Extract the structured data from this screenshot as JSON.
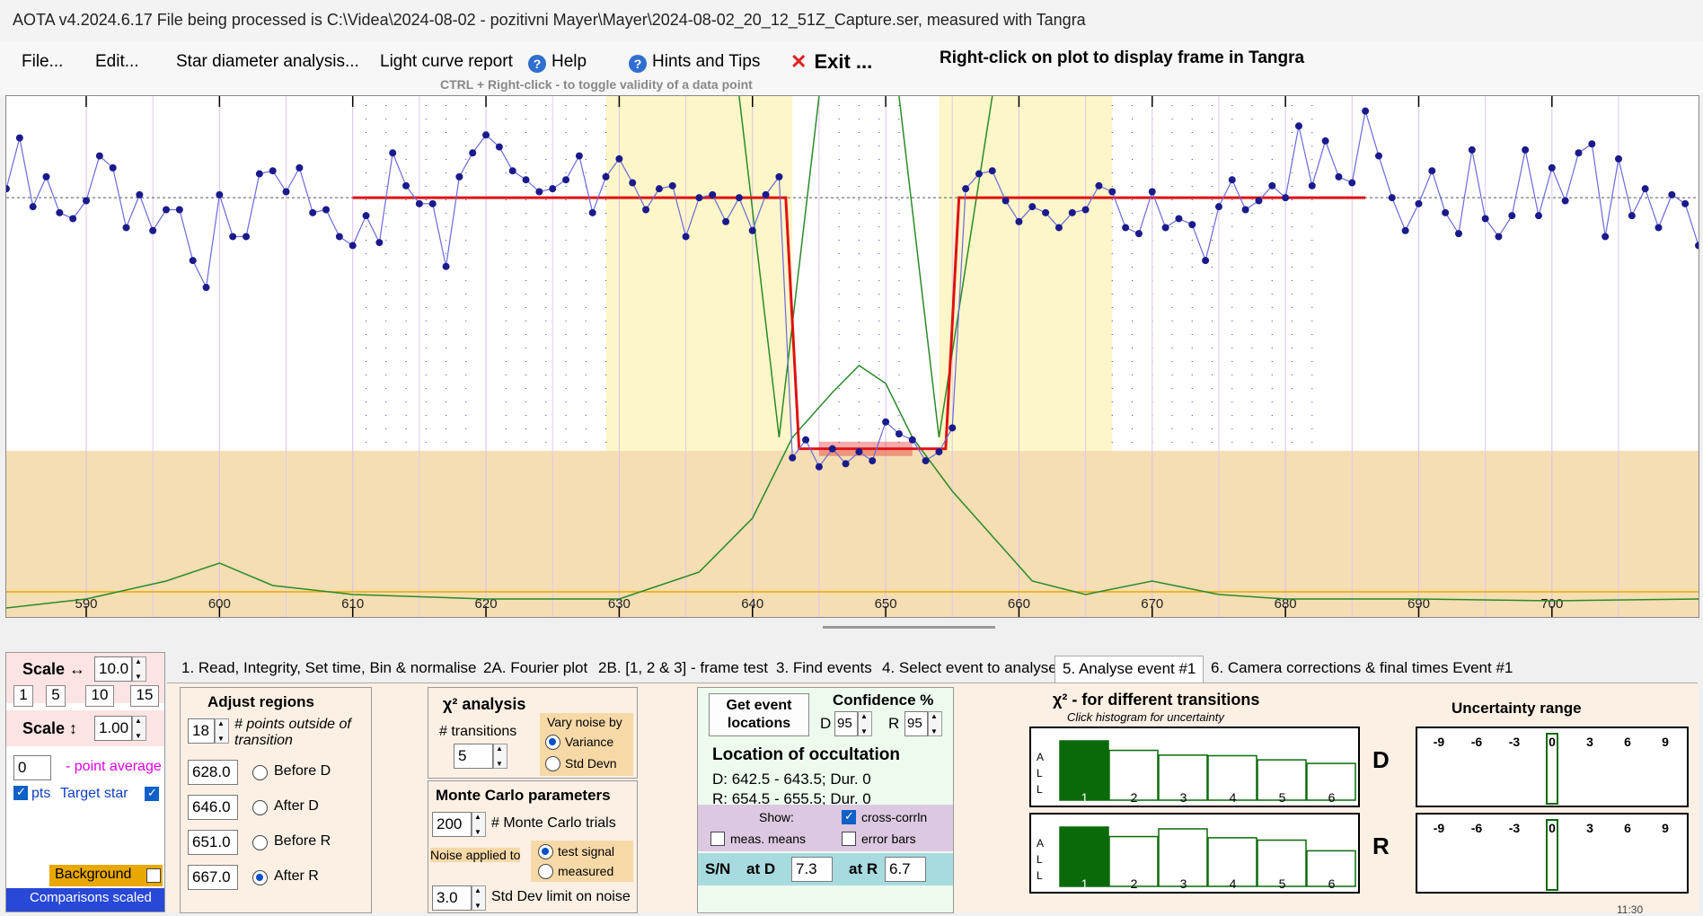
{
  "window": {
    "title": "AOTA v4.2024.6.17    File being processed is C:\\Videa\\2024-08-02 - pozitivni Mayer\\Mayer\\2024-08-02_20_12_51Z_Capture.ser, measured with Tangra"
  },
  "menu": {
    "file": "File...",
    "edit": "Edit...",
    "star_diameter": "Star diameter analysis...",
    "light_curve": "Light curve report",
    "help": "Help",
    "hints": "Hints and Tips",
    "exit": "Exit ...",
    "rightclick_hint": "Right-click on plot to display frame in Tangra",
    "ctrl_hint": "CTRL + Right-click  -  to toggle validity of a data point"
  },
  "colors": {
    "series": "#1a1a8c",
    "model": "#e01010",
    "chi2": "#2a8a2a",
    "yellow_band": "#fdf6c8",
    "tan_band": "#f5deb3",
    "comparison": "#e8a800",
    "tab_bg": "#fcf0e4"
  },
  "chart_data": {
    "type": "line",
    "x_ticks": [
      590,
      600,
      610,
      620,
      630,
      640,
      650,
      660,
      670,
      680,
      690,
      700
    ],
    "xlim": [
      584,
      711
    ],
    "ylim": [
      -2.0,
      12.0
    ],
    "baseline": 8.6,
    "event_level": 0.2,
    "series": [
      {
        "x": [
          584,
          585,
          586,
          587,
          588,
          589,
          590,
          591,
          592,
          593,
          594,
          595,
          596,
          597,
          598,
          599,
          600,
          601,
          602,
          603,
          604,
          605,
          606,
          607,
          608,
          609,
          610,
          611,
          612,
          613,
          614,
          615,
          616,
          617,
          618,
          619,
          620,
          621,
          622,
          623,
          624,
          625,
          626,
          627,
          628,
          629,
          630,
          631,
          632,
          633,
          634,
          635,
          636,
          637,
          638,
          639,
          640,
          641,
          642,
          643,
          644,
          645,
          646,
          647,
          648,
          649,
          650,
          651,
          652,
          653,
          654,
          655,
          656,
          657,
          658,
          659,
          660,
          661,
          662,
          663,
          664,
          665,
          666,
          667,
          668,
          669,
          670,
          671,
          672,
          673,
          674,
          675,
          676,
          677,
          678,
          679,
          680,
          681,
          682,
          683,
          684,
          685,
          686,
          687,
          688,
          689,
          690,
          691,
          692,
          693,
          694,
          695,
          696,
          697,
          698,
          699,
          700,
          701,
          702,
          703,
          704,
          705,
          706,
          707,
          708,
          709,
          710,
          711
        ],
        "y": [
          8.9,
          10.6,
          8.3,
          9.3,
          8.1,
          7.9,
          8.5,
          10.0,
          9.6,
          7.6,
          8.7,
          7.5,
          8.2,
          8.2,
          6.5,
          5.6,
          8.7,
          7.3,
          7.3,
          9.4,
          9.5,
          8.8,
          9.6,
          8.1,
          8.2,
          7.3,
          7.0,
          8.0,
          7.1,
          10.1,
          9.0,
          8.4,
          8.4,
          6.3,
          9.3,
          10.1,
          10.7,
          10.3,
          9.5,
          9.2,
          8.8,
          8.9,
          9.2,
          10.0,
          8.1,
          9.3,
          9.9,
          9.1,
          8.2,
          8.9,
          9.0,
          7.3,
          8.6,
          8.7,
          7.8,
          8.6,
          7.5,
          8.7,
          9.3,
          -0.1,
          0.5,
          -0.4,
          0.2,
          -0.3,
          0.1,
          -0.2,
          1.1,
          0.7,
          0.5,
          -0.2,
          0.1,
          0.9,
          8.9,
          9.4,
          9.5,
          8.5,
          7.8,
          8.3,
          8.1,
          7.6,
          8.1,
          8.2,
          9.0,
          8.8,
          7.6,
          7.4,
          8.8,
          7.6,
          7.9,
          7.7,
          6.5,
          8.3,
          9.2,
          8.2,
          8.5,
          9.0,
          8.6,
          11.0,
          9.0,
          10.5,
          9.3,
          9.1,
          11.5,
          10.0,
          8.6,
          7.5,
          8.4,
          9.5,
          8.1,
          7.4,
          10.2,
          7.9,
          7.3,
          8.0,
          10.2,
          8.0,
          9.6,
          8.5,
          10.1,
          10.4,
          7.3,
          9.9,
          8.0,
          8.9,
          7.6,
          8.7,
          8.4,
          7.0
        ]
      }
    ]
  },
  "bottom": {
    "scale_h_label": "Scale ↔",
    "scale_h_value": "10.0",
    "scale_btns": [
      "1",
      "5",
      "10",
      "15"
    ],
    "scale_v_label": "Scale ↕",
    "scale_v_value": "1.00",
    "point_avg_value": "0",
    "point_avg_label": "- point average",
    "pts_label": "pts",
    "target_star": "Target star",
    "background": "Background",
    "comparisons": "Comparisons scaled",
    "tabs": [
      "1.  Read, Integrity, Set time, Bin & normalise",
      "2A. Fourier plot",
      "2B. [1, 2 & 3] - frame test",
      "3. Find events",
      "4. Select event to analyse",
      "5. Analyse event #1",
      "6. Camera corrections & final times Event #1"
    ],
    "adjust_regions": "Adjust regions",
    "points_outside_value": "18",
    "points_outside_label": "# points outside of transition",
    "region_values": [
      "628.0",
      "646.0",
      "651.0",
      "667.0"
    ],
    "region_labels": [
      "Before D",
      "After D",
      "Before R",
      "After R"
    ],
    "chi2_title": "χ² analysis",
    "transitions_label": "# transitions",
    "transitions_value": "5",
    "vary_noise": "Vary noise by",
    "variance": "Variance",
    "std_devn": "Std Devn",
    "mc_title": "Monte Carlo parameters",
    "mc_trials_value": "200",
    "mc_trials_label": "# Monte Carlo trials",
    "noise_applied": "Noise applied to",
    "test_signal": "test signal",
    "measured": "measured",
    "std_limit_value": "3.0",
    "std_limit_label": "Std Dev limit on noise",
    "get_event_btn": "Get event locations",
    "confidence_label": "Confidence %",
    "conf_d_label": "D",
    "conf_d_value": "95",
    "conf_r_label": "R",
    "conf_r_value": "95",
    "location_title": "Location of occultation",
    "location_d": "D: 642.5 - 643.5; Dur. 0",
    "location_r": "R: 654.5 - 655.5; Dur. 0",
    "show_label": "Show:",
    "cross_corrln": "cross-corrln",
    "meas_means": "meas. means",
    "error_bars": "error bars",
    "sn_label": "S/N",
    "at_d_label": "at D",
    "at_d_value": "7.3",
    "at_r_label": "at R",
    "at_r_value": "6.7",
    "chi2_hist_title": "χ² - for different transitions",
    "chi2_hist_sub": "Click histogram for uncertainty",
    "hist_side_labels": [
      "A",
      "L",
      "L"
    ],
    "hist_d_values": [
      1.0,
      0.84,
      0.76,
      0.75,
      0.68,
      0.62
    ],
    "hist_r_values": [
      1.0,
      0.84,
      0.97,
      0.82,
      0.78,
      0.6
    ],
    "hist_categories": [
      "1",
      "2",
      "3",
      "4",
      "5",
      "6"
    ],
    "hist_d_letter": "D",
    "hist_r_letter": "R",
    "uncertainty_title": "Uncertainty range",
    "unc_ticks": [
      "-9",
      "-6",
      "-3",
      "0",
      "3",
      "6",
      "9"
    ],
    "tray_time": "11:30"
  }
}
